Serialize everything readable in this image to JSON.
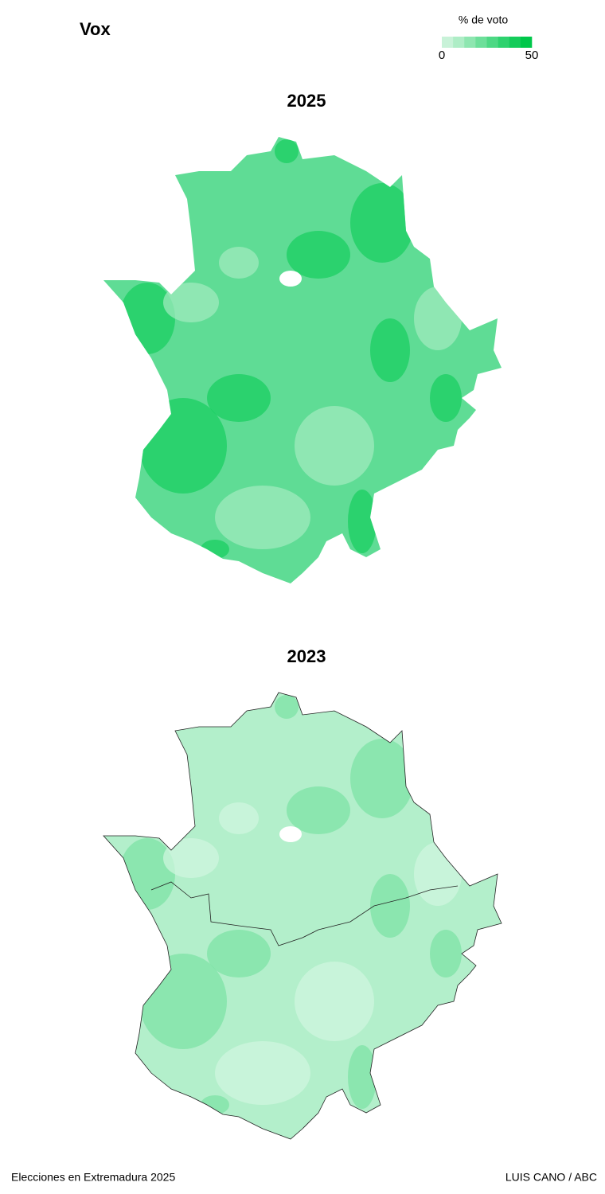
{
  "title": "Vox",
  "legend": {
    "title": "% de voto",
    "range": [
      0,
      50
    ],
    "colors": [
      "#c8f2d8",
      "#aeedc6",
      "#8ee6b0",
      "#6ddf9a",
      "#4dd884",
      "#2ed26e",
      "#14cc5a",
      "#00c74a"
    ]
  },
  "maps": [
    {
      "title": "2025",
      "base_color": "#5fdc95",
      "shade_color": "#19cf62",
      "light_color": "#a4ebc1",
      "border": false
    },
    {
      "title": "2023",
      "base_color": "#b3efcb",
      "shade_color": "#7ee3a6",
      "light_color": "#d2f6e0",
      "border": true
    }
  ],
  "footer": {
    "left": "Elecciones en Extremadura 2025",
    "right": "LUIS CANO / ABC"
  }
}
